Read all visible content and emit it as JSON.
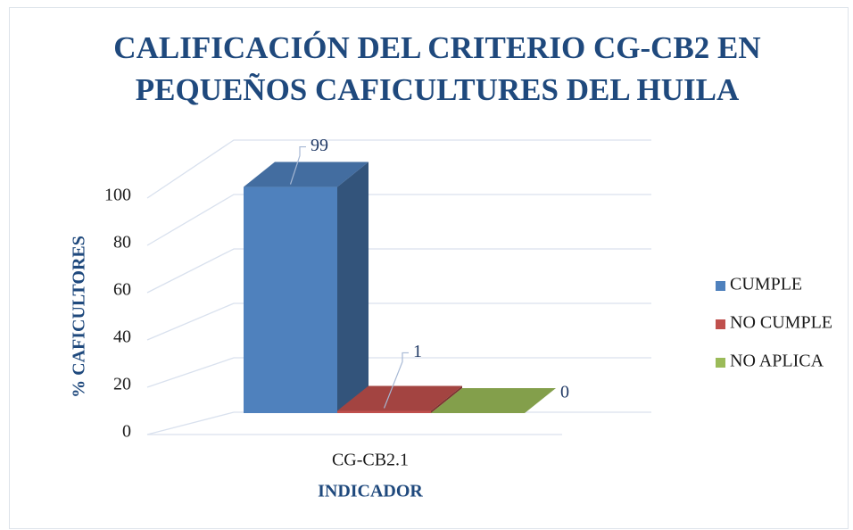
{
  "chart_data": {
    "type": "bar3d",
    "title": [
      "CALIFICACIÓN DEL CRITERIO CG-CB2 EN",
      "PEQUEÑOS CAFICULTURES DEL HUILA"
    ],
    "x_label": "INDICADOR",
    "y_label": "% CAFICULTORES",
    "categories": [
      "CG-CB2.1"
    ],
    "series": [
      {
        "name": "CUMPLE",
        "color": "#4f81bd",
        "values": [
          99
        ]
      },
      {
        "name": "NO CUMPLE",
        "color": "#c0504d",
        "values": [
          1
        ]
      },
      {
        "name": "NO APLICA",
        "color": "#9bbb59",
        "values": [
          0
        ]
      }
    ],
    "ylim": [
      0,
      100
    ],
    "yticks": [
      0,
      20,
      40,
      60,
      80,
      100
    ],
    "grid": true,
    "legend": "right"
  }
}
